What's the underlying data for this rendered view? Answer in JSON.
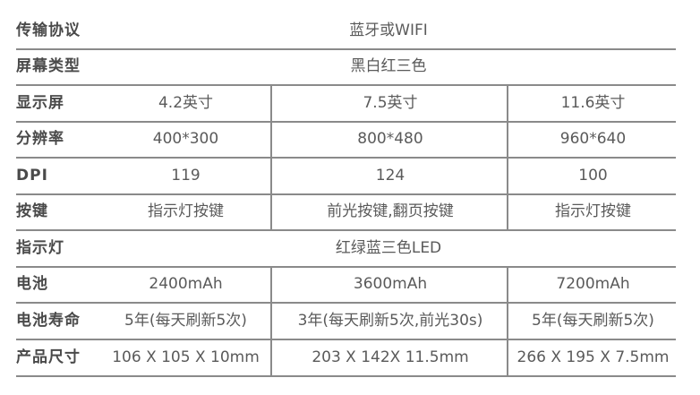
{
  "rows": [
    {
      "label": "传输协议",
      "value": "蓝牙或WIFI"
    },
    {
      "label": "屏幕类型",
      "value": "黑白红三色"
    },
    {
      "label": "显示屏",
      "values": [
        "4.2英寸",
        "7.5英寸",
        "11.6英寸"
      ]
    },
    {
      "label": "分辨率",
      "values": [
        "400*300",
        "800*480",
        "960*640"
      ]
    },
    {
      "label": "DPI",
      "values": [
        "119",
        "124",
        "100"
      ]
    },
    {
      "label": "按键",
      "values": [
        "指示灯按键",
        "前光按键,翻页按键",
        "指示灯按键"
      ]
    },
    {
      "label": "指示灯",
      "value": "红绿蓝三色LED"
    },
    {
      "label": "电池",
      "values": [
        "2400mAh",
        "3600mAh",
        "7200mAh"
      ]
    },
    {
      "label": "电池寿命",
      "values": [
        "5年(每天刷新5次)",
        "3年(每天刷新5次,前光30s)",
        "5年(每天刷新5次)"
      ]
    },
    {
      "label": "产品尺寸",
      "values": [
        "106 X 105 X 10mm",
        "203 X 142X 11.5mm",
        "266 X 195 X 7.5mm"
      ]
    }
  ]
}
